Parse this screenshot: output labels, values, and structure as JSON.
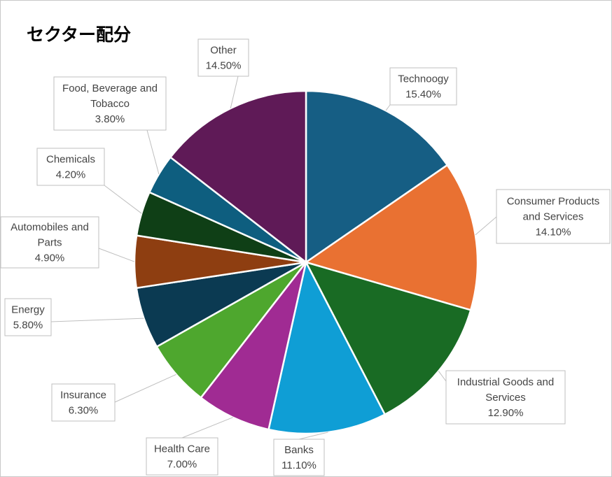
{
  "chart_data": {
    "type": "pie",
    "title": "セクター配分",
    "slices": [
      {
        "label": [
          "Technoogy"
        ],
        "value": 15.4,
        "display": "15.40%",
        "color": "#165E84"
      },
      {
        "label": [
          "Consumer Products",
          "and Services"
        ],
        "value": 14.1,
        "display": "14.10%",
        "color": "#E97132"
      },
      {
        "label": [
          "Industrial Goods and",
          "Services"
        ],
        "value": 12.9,
        "display": "12.90%",
        "color": "#196B24"
      },
      {
        "label": [
          "Banks"
        ],
        "value": 11.1,
        "display": "11.10%",
        "color": "#0F9ED5"
      },
      {
        "label": [
          "Health Care"
        ],
        "value": 7.0,
        "display": "7.00%",
        "color": "#A02B93"
      },
      {
        "label": [
          "Insurance"
        ],
        "value": 6.3,
        "display": "6.30%",
        "color": "#4EA72E"
      },
      {
        "label": [
          "Energy"
        ],
        "value": 5.8,
        "display": "5.80%",
        "color": "#0B3A52"
      },
      {
        "label": [
          "Automobiles and",
          "Parts"
        ],
        "value": 4.9,
        "display": "4.90%",
        "color": "#8E3E11"
      },
      {
        "label": [
          "Chemicals"
        ],
        "value": 4.2,
        "display": "4.20%",
        "color": "#0F3F16"
      },
      {
        "label": [
          "Food, Beverage and",
          "Tobacco"
        ],
        "value": 3.8,
        "display": "3.80%",
        "color": "#0E5E7F"
      },
      {
        "label": [
          "Other"
        ],
        "value": 14.5,
        "display": "14.50%",
        "color": "#5F1A57"
      }
    ]
  }
}
